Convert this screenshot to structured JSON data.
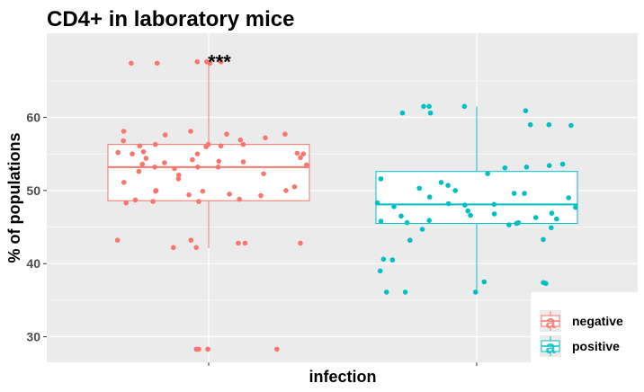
{
  "chart_data": {
    "type": "boxplot",
    "title": "CD4+ in laboratory mice",
    "xlabel": "infection",
    "ylabel": "% of populations",
    "ylim": [
      26.5,
      71.5
    ],
    "yticks": [
      30,
      40,
      50,
      60
    ],
    "grid": true,
    "background": "#ebebeb",
    "legend": {
      "placement": "bottom-right",
      "entries": [
        "negative",
        "positive"
      ]
    },
    "annotation": {
      "text": "***",
      "group": "negative"
    },
    "groups": [
      {
        "name": "negative",
        "color": "#f8766d",
        "box": {
          "lower_whisker": 42.1,
          "q1": 48.6,
          "median": 53.2,
          "q3": 56.3,
          "upper_whisker": 67.6
        },
        "points": [
          67.6,
          67.6,
          67.4,
          67.4,
          67.6,
          67.4,
          58.1,
          57.7,
          57.7,
          58.1,
          57.6,
          57.2,
          56.9,
          56.8,
          56.3,
          56.3,
          56.3,
          56.1,
          56.1,
          56.0,
          55.3,
          55.2,
          55.1,
          55.0,
          55.0,
          55.0,
          54.5,
          54.4,
          54.2,
          54.0,
          53.9,
          53.8,
          53.6,
          53.5,
          53.2,
          53.2,
          53.2,
          53.0,
          52.6,
          52.3,
          52.1,
          51.6,
          51.1,
          50.5,
          50.0,
          50.0,
          49.9,
          49.9,
          49.5,
          49.4,
          49.3,
          48.8,
          48.7,
          48.5,
          48.5,
          48.3,
          43.2,
          43.2,
          42.8,
          42.8,
          42.8,
          42.2,
          42.2,
          28.3,
          28.3,
          28.3,
          28.3
        ]
      },
      {
        "name": "positive",
        "color": "#00bfc4",
        "box": {
          "lower_whisker": 36.1,
          "q1": 45.5,
          "median": 48.1,
          "q3": 52.6,
          "upper_whisker": 61.5
        },
        "points": [
          61.5,
          61.5,
          61.5,
          60.9,
          60.6,
          60.6,
          59.0,
          59.0,
          58.9,
          53.6,
          53.4,
          53.2,
          53.1,
          52.3,
          51.6,
          51.1,
          50.7,
          50.3,
          50.0,
          49.6,
          49.6,
          49.1,
          49.0,
          48.3,
          48.2,
          48.1,
          48.0,
          47.8,
          47.7,
          47.2,
          46.9,
          46.8,
          46.6,
          46.5,
          46.3,
          46.1,
          45.9,
          45.8,
          45.6,
          45.6,
          45.5,
          45.3,
          44.9,
          44.7,
          43.3,
          43.2,
          40.6,
          40.5,
          39.0,
          37.5,
          37.4,
          37.3,
          36.1,
          36.1,
          36.1
        ]
      }
    ]
  }
}
